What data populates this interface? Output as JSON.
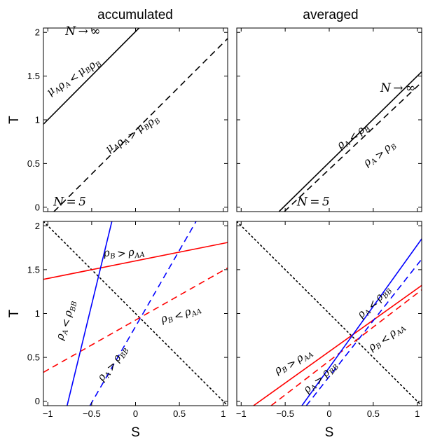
{
  "column_titles": [
    "accumulated",
    "averaged"
  ],
  "chart_data": [
    {
      "type": "line",
      "panel": "top-left",
      "xlim": [
        -1.05,
        1.05
      ],
      "ylim": [
        -0.05,
        2.05
      ],
      "xticks": [
        -1,
        -0.5,
        0,
        0.5,
        1
      ],
      "yticks": [
        0,
        0.5,
        1,
        1.5,
        2
      ],
      "xticklabels": [],
      "yticklabels": [
        "0",
        "0.5",
        "1",
        "1.5",
        "2"
      ],
      "xlabel": "",
      "ylabel": "T",
      "series": [
        {
          "color": "#000000",
          "dash": "solid",
          "x": [
            -1.05,
            0.04
          ],
          "y": [
            0.95,
            2.05
          ]
        },
        {
          "color": "#000000",
          "dash": "dashed",
          "x": [
            -0.93,
            1.05
          ],
          "y": [
            -0.05,
            1.93
          ]
        }
      ],
      "annotations": [
        {
          "text": "N → ∞",
          "x": -0.6,
          "y": 1.97,
          "angle": 0,
          "size": "lg"
        },
        {
          "text": "μAρA < μBρB",
          "x": -0.72,
          "y": 1.5,
          "angle": -42
        },
        {
          "text": "μAρA > μBρB",
          "x": -0.05,
          "y": 0.85,
          "angle": -42
        },
        {
          "text": "N = 5",
          "x": -0.75,
          "y": 0.02,
          "angle": 0,
          "size": "lg"
        }
      ]
    },
    {
      "type": "line",
      "panel": "top-right",
      "xlim": [
        -1.05,
        1.05
      ],
      "ylim": [
        -0.05,
        2.05
      ],
      "xticks": [
        -1,
        -0.5,
        0,
        0.5,
        1
      ],
      "yticks": [
        0,
        0.5,
        1,
        1.5,
        2
      ],
      "xticklabels": [],
      "yticklabels": [],
      "xlabel": "",
      "ylabel": "",
      "series": [
        {
          "color": "#000000",
          "dash": "solid",
          "x": [
            -0.57,
            1.05
          ],
          "y": [
            -0.05,
            1.55
          ]
        },
        {
          "color": "#000000",
          "dash": "dashed",
          "x": [
            -0.51,
            1.05
          ],
          "y": [
            -0.05,
            1.43
          ]
        }
      ],
      "annotations": [
        {
          "text": "N → ∞",
          "x": 0.78,
          "y": 1.32,
          "angle": 0,
          "size": "lg"
        },
        {
          "text": "ρA < ρB",
          "x": 0.28,
          "y": 0.8,
          "angle": -42
        },
        {
          "text": "ρA > ρB",
          "x": 0.58,
          "y": 0.6,
          "angle": -42
        },
        {
          "text": "N = 5",
          "x": -0.18,
          "y": 0.02,
          "angle": 0,
          "size": "lg"
        }
      ]
    },
    {
      "type": "line",
      "panel": "bottom-left",
      "xlim": [
        -1.05,
        1.05
      ],
      "ylim": [
        -0.05,
        2.05
      ],
      "xticks": [
        -1,
        -0.5,
        0,
        0.5,
        1
      ],
      "yticks": [
        0,
        0.5,
        1,
        1.5,
        2
      ],
      "xticklabels": [
        "−1",
        "−0.5",
        "0",
        "0.5",
        "1"
      ],
      "yticklabels": [
        "0",
        "0.5",
        "1",
        "1.5",
        "2"
      ],
      "xlabel": "S",
      "ylabel": "T",
      "series": [
        {
          "color": "#000000",
          "dash": "dotted",
          "x": [
            -1.05,
            1.05
          ],
          "y": [
            2.05,
            -0.05
          ]
        },
        {
          "color": "#ff0000",
          "dash": "solid",
          "x": [
            -1.05,
            1.05
          ],
          "y": [
            1.39,
            1.81
          ]
        },
        {
          "color": "#ff0000",
          "dash": "dashed",
          "x": [
            -1.05,
            1.05
          ],
          "y": [
            0.33,
            1.52
          ]
        },
        {
          "color": "#0000ff",
          "dash": "solid",
          "x": [
            -0.78,
            -0.27
          ],
          "y": [
            -0.05,
            2.05
          ]
        },
        {
          "color": "#0000ff",
          "dash": "dashed",
          "x": [
            -0.52,
            0.69
          ],
          "y": [
            -0.05,
            2.05
          ]
        }
      ],
      "annotations": [
        {
          "text": "ρB > ρAA",
          "x": -0.13,
          "y": 1.68,
          "angle": -8
        },
        {
          "text": "ρB < ρAA",
          "x": 0.52,
          "y": 0.98,
          "angle": -22
        },
        {
          "text": "ρA < ρBB",
          "x": -0.78,
          "y": 0.92,
          "angle": -78
        },
        {
          "text": "ρA > ρBB",
          "x": -0.25,
          "y": 0.42,
          "angle": -58
        }
      ]
    },
    {
      "type": "line",
      "panel": "bottom-right",
      "xlim": [
        -1.05,
        1.05
      ],
      "ylim": [
        -0.05,
        2.05
      ],
      "xticks": [
        -1,
        -0.5,
        0,
        0.5,
        1
      ],
      "yticks": [
        0,
        0.5,
        1,
        1.5,
        2
      ],
      "xticklabels": [
        "−1",
        "−0.5",
        "0",
        "0.5",
        "1"
      ],
      "yticklabels": [],
      "xlabel": "S",
      "ylabel": "",
      "series": [
        {
          "color": "#000000",
          "dash": "dotted",
          "x": [
            -1.05,
            1.05
          ],
          "y": [
            2.05,
            -0.05
          ]
        },
        {
          "color": "#ff0000",
          "dash": "solid",
          "x": [
            -0.86,
            1.05
          ],
          "y": [
            -0.05,
            1.32
          ]
        },
        {
          "color": "#ff0000",
          "dash": "dashed",
          "x": [
            -0.66,
            1.05
          ],
          "y": [
            -0.05,
            1.27
          ]
        },
        {
          "color": "#0000ff",
          "dash": "solid",
          "x": [
            -0.31,
            1.05
          ],
          "y": [
            -0.05,
            1.85
          ]
        },
        {
          "color": "#0000ff",
          "dash": "dashed",
          "x": [
            -0.26,
            1.05
          ],
          "y": [
            -0.05,
            1.62
          ]
        }
      ],
      "annotations": [
        {
          "text": "ρB > ρAA",
          "x": -0.4,
          "y": 0.44,
          "angle": -35
        },
        {
          "text": "ρA > ρBB",
          "x": -0.09,
          "y": 0.26,
          "angle": -48
        },
        {
          "text": "ρA < ρBB",
          "x": 0.52,
          "y": 1.12,
          "angle": -50
        },
        {
          "text": "ρB < ρAA",
          "x": 0.66,
          "y": 0.72,
          "angle": -40
        }
      ]
    }
  ]
}
